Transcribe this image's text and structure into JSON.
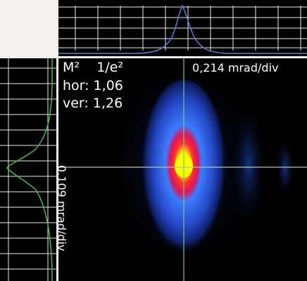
{
  "beam_profiler": {
    "m2_label": "M²",
    "clip_label": "1/e²",
    "hor_label": "hor:",
    "hor_value": "1,06",
    "ver_label": "ver:",
    "ver_value": "1,26",
    "scale_horizontal": "0,214 mrad/div",
    "scale_vertical": "0,109 mrad/div"
  },
  "colors": {
    "corner_background": "#f6f2ee",
    "grid": "#e8e8e8",
    "top_profile_curve": "#5b7fd6",
    "side_profile_curve": "#39c23c",
    "crosshair": "#7fc47a",
    "beam_core": "#ffff00",
    "beam_ring": "#ff2a2a",
    "beam_outer": "#2f55d4"
  }
}
